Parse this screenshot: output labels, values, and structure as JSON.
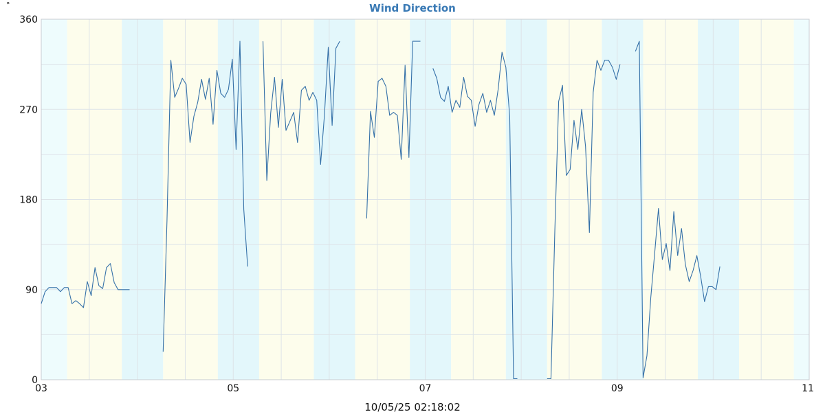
{
  "unit_label": "°",
  "footer_timestamp": "10/05/25 02:18:02",
  "colors": {
    "title": "#3a7ab5",
    "line": "#3470a8",
    "band_cyan": "#eefcfd",
    "band_yellow": "#fdfdec",
    "band_cyan_dark": "#e3f7fb",
    "grid": "#dde3e8",
    "axis": "#c8cdd2"
  },
  "chart_data": {
    "type": "line",
    "title": "Wind Direction",
    "xlabel": "",
    "ylabel": "°",
    "xlim": [
      3,
      11
    ],
    "ylim": [
      0,
      360
    ],
    "x_tick_labels": [
      "03",
      "05",
      "07",
      "09",
      "11"
    ],
    "x_ticks": [
      3,
      5,
      7,
      9,
      11
    ],
    "y_tick_labels": [
      "0",
      "90",
      "180",
      "270",
      "360"
    ],
    "y_ticks": [
      0,
      90,
      180,
      270,
      360
    ],
    "grid": true,
    "background_bands": [
      {
        "from": 3.0,
        "to": 3.27,
        "kind": "cyan"
      },
      {
        "from": 3.27,
        "to": 3.84,
        "kind": "yellow"
      },
      {
        "from": 3.84,
        "to": 4.27,
        "kind": "cyan_dark"
      },
      {
        "from": 4.27,
        "to": 4.84,
        "kind": "yellow"
      },
      {
        "from": 4.84,
        "to": 5.27,
        "kind": "cyan_dark"
      },
      {
        "from": 5.27,
        "to": 5.84,
        "kind": "yellow"
      },
      {
        "from": 5.84,
        "to": 6.27,
        "kind": "cyan_dark"
      },
      {
        "from": 6.27,
        "to": 6.84,
        "kind": "yellow"
      },
      {
        "from": 6.84,
        "to": 7.27,
        "kind": "cyan_dark"
      },
      {
        "from": 7.27,
        "to": 7.84,
        "kind": "yellow"
      },
      {
        "from": 7.84,
        "to": 8.27,
        "kind": "cyan_dark"
      },
      {
        "from": 8.27,
        "to": 8.84,
        "kind": "yellow"
      },
      {
        "from": 8.84,
        "to": 9.27,
        "kind": "cyan_dark"
      },
      {
        "from": 9.27,
        "to": 9.84,
        "kind": "yellow"
      },
      {
        "from": 9.84,
        "to": 10.27,
        "kind": "cyan_dark"
      },
      {
        "from": 10.27,
        "to": 10.84,
        "kind": "yellow"
      },
      {
        "from": 10.84,
        "to": 11.0,
        "kind": "cyan"
      }
    ],
    "series": [
      {
        "segments": [
          [
            [
              3.0,
              76
            ],
            [
              3.04,
              88
            ],
            [
              3.08,
              92
            ],
            [
              3.12,
              92
            ],
            [
              3.16,
              92
            ],
            [
              3.2,
              88
            ],
            [
              3.24,
              92
            ],
            [
              3.28,
              92
            ],
            [
              3.32,
              76
            ],
            [
              3.36,
              79
            ],
            [
              3.4,
              76
            ],
            [
              3.44,
              72
            ],
            [
              3.48,
              98
            ],
            [
              3.52,
              84
            ],
            [
              3.56,
              112
            ],
            [
              3.6,
              94
            ],
            [
              3.64,
              91
            ],
            [
              3.68,
              112
            ],
            [
              3.72,
              116
            ],
            [
              3.76,
              97
            ],
            [
              3.8,
              90
            ],
            [
              3.84,
              90
            ],
            [
              3.88,
              90
            ],
            [
              3.92,
              90
            ]
          ],
          [
            [
              4.27,
              28
            ],
            [
              4.31,
              159
            ],
            [
              4.35,
              319
            ],
            [
              4.39,
              282
            ],
            [
              4.43,
              291
            ],
            [
              4.47,
              301
            ],
            [
              4.51,
              295
            ],
            [
              4.55,
              237
            ],
            [
              4.59,
              263
            ],
            [
              4.63,
              277
            ],
            [
              4.67,
              300
            ],
            [
              4.71,
              280
            ],
            [
              4.75,
              301
            ],
            [
              4.79,
              255
            ],
            [
              4.83,
              309
            ],
            [
              4.87,
              286
            ],
            [
              4.91,
              282
            ],
            [
              4.95,
              290
            ],
            [
              4.99,
              320
            ],
            [
              5.03,
              230
            ],
            [
              5.07,
              338
            ],
            [
              5.11,
              170
            ],
            [
              5.15,
              113
            ]
          ],
          [
            [
              5.31,
              338
            ],
            [
              5.35,
              199
            ],
            [
              5.39,
              266
            ],
            [
              5.43,
              302
            ],
            [
              5.47,
              252
            ],
            [
              5.51,
              300
            ],
            [
              5.55,
              249
            ],
            [
              5.59,
              258
            ],
            [
              5.63,
              267
            ],
            [
              5.67,
              237
            ],
            [
              5.71,
              289
            ],
            [
              5.75,
              293
            ],
            [
              5.79,
              279
            ],
            [
              5.83,
              287
            ],
            [
              5.87,
              279
            ],
            [
              5.91,
              215
            ],
            [
              5.95,
              264
            ],
            [
              5.99,
              332
            ],
            [
              6.03,
              254
            ],
            [
              6.07,
              331
            ],
            [
              6.11,
              338
            ]
          ],
          [
            [
              6.39,
              161
            ],
            [
              6.43,
              268
            ],
            [
              6.47,
              242
            ],
            [
              6.51,
              298
            ],
            [
              6.55,
              301
            ],
            [
              6.59,
              293
            ],
            [
              6.63,
              264
            ],
            [
              6.67,
              267
            ],
            [
              6.71,
              264
            ],
            [
              6.75,
              220
            ],
            [
              6.79,
              314
            ],
            [
              6.83,
              222
            ],
            [
              6.87,
              338
            ],
            [
              6.91,
              338
            ],
            [
              6.95,
              338
            ]
          ],
          [
            [
              7.08,
              311
            ],
            [
              7.12,
              301
            ],
            [
              7.16,
              282
            ],
            [
              7.2,
              278
            ],
            [
              7.24,
              293
            ],
            [
              7.28,
              267
            ],
            [
              7.32,
              279
            ],
            [
              7.36,
              272
            ],
            [
              7.4,
              302
            ],
            [
              7.44,
              283
            ],
            [
              7.48,
              279
            ],
            [
              7.52,
              253
            ],
            [
              7.56,
              275
            ],
            [
              7.6,
              286
            ],
            [
              7.64,
              267
            ],
            [
              7.68,
              279
            ],
            [
              7.72,
              264
            ],
            [
              7.76,
              290
            ],
            [
              7.8,
              327
            ],
            [
              7.84,
              312
            ],
            [
              7.88,
              263
            ],
            [
              7.92,
              1
            ],
            [
              7.96,
              1
            ]
          ],
          [
            [
              8.27,
              1
            ],
            [
              8.31,
              1
            ],
            [
              8.35,
              148
            ],
            [
              8.39,
              278
            ],
            [
              8.43,
              294
            ],
            [
              8.47,
              204
            ],
            [
              8.51,
              210
            ],
            [
              8.55,
              259
            ],
            [
              8.59,
              230
            ],
            [
              8.63,
              270
            ],
            [
              8.67,
              233
            ],
            [
              8.71,
              147
            ],
            [
              8.75,
              287
            ],
            [
              8.79,
              319
            ],
            [
              8.83,
              309
            ],
            [
              8.87,
              319
            ],
            [
              8.91,
              319
            ],
            [
              8.95,
              312
            ],
            [
              8.99,
              300
            ],
            [
              9.03,
              315
            ]
          ],
          [
            [
              9.19,
              328
            ],
            [
              9.23,
              338
            ],
            [
              9.27,
              2
            ],
            [
              9.31,
              24
            ],
            [
              9.35,
              82
            ],
            [
              9.39,
              126
            ],
            [
              9.43,
              171
            ],
            [
              9.47,
              120
            ],
            [
              9.51,
              136
            ],
            [
              9.55,
              109
            ],
            [
              9.59,
              168
            ],
            [
              9.63,
              124
            ],
            [
              9.67,
              151
            ],
            [
              9.71,
              115
            ],
            [
              9.75,
              98
            ],
            [
              9.79,
              109
            ],
            [
              9.83,
              124
            ],
            [
              9.87,
              103
            ],
            [
              9.91,
              78
            ],
            [
              9.95,
              93
            ],
            [
              9.99,
              93
            ],
            [
              10.03,
              90
            ],
            [
              10.07,
              113
            ]
          ]
        ]
      }
    ]
  }
}
